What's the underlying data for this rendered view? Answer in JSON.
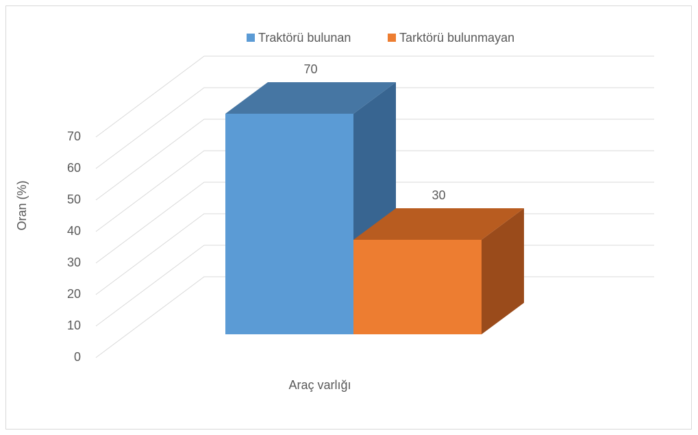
{
  "chart_data": {
    "type": "bar3d",
    "categories": [
      "Araç varlığı"
    ],
    "series": [
      {
        "name": "Traktörü bulunan",
        "color": "#5b9bd5",
        "top_color": "#4676a3",
        "side_color": "#386591",
        "values": [
          70
        ]
      },
      {
        "name": "Tarktörü bulunmayan",
        "color": "#ed7d31",
        "top_color": "#b85c20",
        "side_color": "#9a4b1b",
        "values": [
          30
        ]
      }
    ],
    "y_label": "Oran (%)",
    "ylim": [
      0,
      70
    ],
    "yticks": [
      0,
      10,
      20,
      30,
      40,
      50,
      60,
      70
    ],
    "grid": true,
    "legend": "top"
  }
}
